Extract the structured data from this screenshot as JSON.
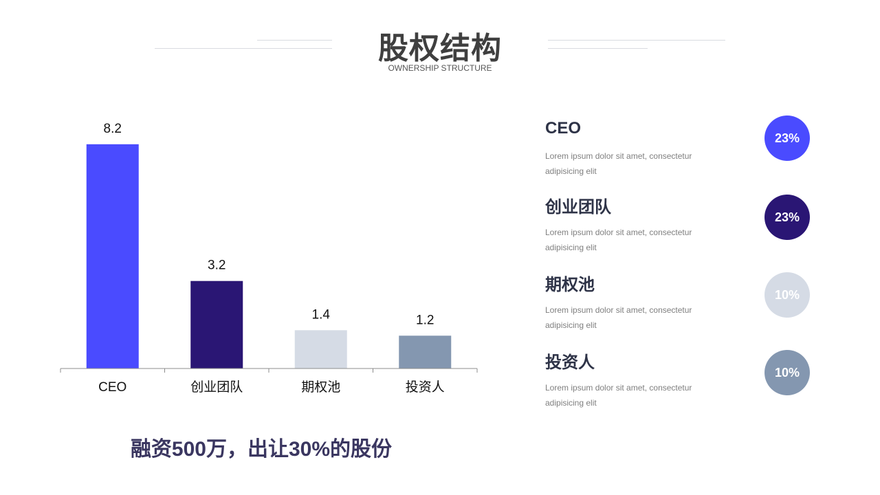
{
  "header": {
    "title": "股权结构",
    "subtitle": "OWNERSHIP STRUCTURE"
  },
  "chart_data": {
    "type": "bar",
    "categories": [
      "CEO",
      "创业团队",
      "期权池",
      "投资人"
    ],
    "values": [
      8.2,
      3.2,
      1.4,
      1.2
    ],
    "value_labels": [
      "8.2",
      "3.2",
      "1.4",
      "1.2"
    ],
    "colors": [
      "#4a4bff",
      "#2a1674",
      "#d5dbe5",
      "#8497b0"
    ],
    "ylim": [
      0,
      9
    ],
    "grid": false,
    "data_labels": true
  },
  "summary": "融资500万，出让30%的股份",
  "legend": [
    {
      "name": "CEO",
      "desc": "Lorem ipsum dolor sit amet, consectetur adipisicing elit",
      "percent": "23%",
      "color": "#4a4bff"
    },
    {
      "name": "创业团队",
      "desc": "Lorem ipsum dolor sit amet, consectetur adipisicing elit",
      "percent": "23%",
      "color": "#2a1674"
    },
    {
      "name": "期权池",
      "desc": "Lorem ipsum dolor sit amet, consectetur adipisicing elit",
      "percent": "10%",
      "color": "#d5dbe5"
    },
    {
      "name": "投资人",
      "desc": "Lorem ipsum dolor sit amet, consectetur adipisicing elit",
      "percent": "10%",
      "color": "#8497b0"
    }
  ]
}
